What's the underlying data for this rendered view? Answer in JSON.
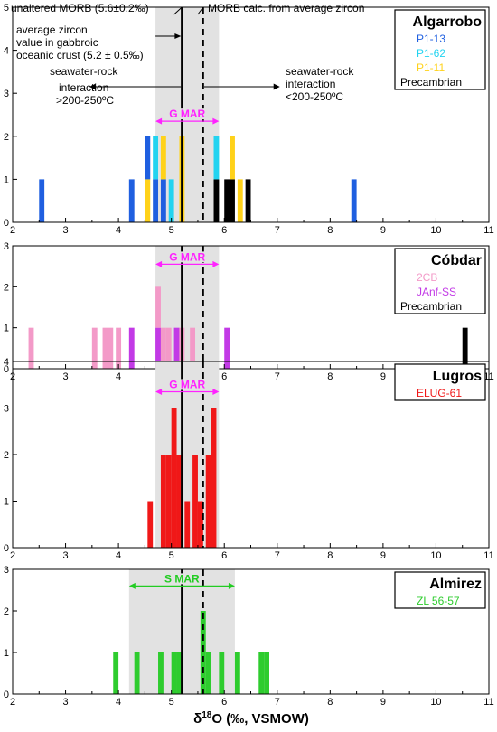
{
  "figure": {
    "x_axis_label_prefix": "δ",
    "x_axis_label_sup": "18",
    "x_axis_label_rest": "O (‰, VSMOW)",
    "annotations": {
      "unaltered_morb": "unaltered MORB (5.6±0.2‰)",
      "morb_calc": "MORB calc. from average zircon",
      "avg_zircon_lines": [
        "average zircon",
        "value in gabbroic",
        "oceanic crust (5.2 ± 0.5‰)"
      ],
      "hot_lines": [
        "seawater-rock",
        "interaction",
        ">200-250ºC"
      ],
      "cold_lines": [
        "seawater-rock",
        "interaction",
        "<200-250ºC"
      ]
    },
    "reference_lines": {
      "solid_x": 5.2,
      "dashed_x": 5.6
    },
    "colors": {
      "P1-13": "#1f5fe0",
      "P1-62": "#22d3f0",
      "P1-11": "#ffd21a",
      "Precambrian": "#000000",
      "2CB": "#f39ac8",
      "JAnf-SS": "#c23ae6",
      "ELUG-61": "#f01818",
      "ZL 56-57": "#2ecc2e",
      "gmar": "#ff22ff",
      "smar": "#22cc22",
      "band": "#e2e2e2"
    }
  },
  "chart_data": [
    {
      "type": "bar",
      "title": "Algarrobo",
      "xlim": [
        2,
        11
      ],
      "ylim": [
        0,
        5
      ],
      "xticks": [
        2,
        3,
        4,
        5,
        6,
        7,
        8,
        9,
        10,
        11
      ],
      "yticks": [
        0,
        1,
        2,
        3,
        4,
        5
      ],
      "band": [
        4.7,
        5.9
      ],
      "range_label": "G MAR",
      "range": [
        4.7,
        5.9
      ],
      "range_y": 2.35,
      "range_color": "gmar",
      "legend": [
        {
          "name": "P1-13",
          "color": "P1-13"
        },
        {
          "name": "P1-62",
          "color": "P1-62"
        },
        {
          "name": "P1-11",
          "color": "P1-11"
        },
        {
          "name": "Precambrian",
          "color": "Precambrian"
        }
      ],
      "bars": [
        {
          "x": 2.55,
          "base": 0,
          "h": 1,
          "series": "P1-13"
        },
        {
          "x": 4.25,
          "base": 0,
          "h": 1,
          "series": "P1-13"
        },
        {
          "x": 4.55,
          "base": 0,
          "h": 1,
          "series": "P1-11"
        },
        {
          "x": 4.55,
          "base": 1,
          "h": 1,
          "series": "P1-13"
        },
        {
          "x": 4.7,
          "base": 0,
          "h": 1,
          "series": "P1-13"
        },
        {
          "x": 4.7,
          "base": 1,
          "h": 1,
          "series": "P1-62"
        },
        {
          "x": 4.85,
          "base": 0,
          "h": 1,
          "series": "P1-13"
        },
        {
          "x": 4.85,
          "base": 1,
          "h": 1,
          "series": "P1-11"
        },
        {
          "x": 5.0,
          "base": 0,
          "h": 1,
          "series": "P1-62"
        },
        {
          "x": 5.2,
          "base": 0,
          "h": 2,
          "series": "P1-11"
        },
        {
          "x": 5.85,
          "base": 0,
          "h": 1,
          "series": "Precambrian"
        },
        {
          "x": 5.85,
          "base": 1,
          "h": 1,
          "series": "P1-62"
        },
        {
          "x": 6.05,
          "base": 0,
          "h": 1,
          "series": "Precambrian"
        },
        {
          "x": 6.15,
          "base": 0,
          "h": 1,
          "series": "Precambrian"
        },
        {
          "x": 6.15,
          "base": 1,
          "h": 1,
          "series": "P1-11"
        },
        {
          "x": 6.3,
          "base": 0,
          "h": 1,
          "series": "P1-11"
        },
        {
          "x": 6.45,
          "base": 0,
          "h": 1,
          "series": "Precambrian"
        },
        {
          "x": 8.45,
          "base": 0,
          "h": 1,
          "series": "P1-13"
        }
      ]
    },
    {
      "type": "bar",
      "title": "Cóbdar",
      "xlim": [
        2,
        11
      ],
      "ylim": [
        0,
        3
      ],
      "xticks": [
        2,
        3,
        4,
        5,
        6,
        7,
        8,
        9,
        10,
        11
      ],
      "yticks": [
        0,
        1,
        2,
        3
      ],
      "band": [
        4.7,
        5.9
      ],
      "range_label": "G MAR",
      "range": [
        4.7,
        5.9
      ],
      "range_y": 2.55,
      "range_color": "gmar",
      "legend": [
        {
          "name": "2CB",
          "color": "2CB"
        },
        {
          "name": "JAnf-SS",
          "color": "JAnf-SS"
        },
        {
          "name": "Precambrian",
          "color": "Precambrian"
        }
      ],
      "bars": [
        {
          "x": 2.35,
          "base": 0,
          "h": 1,
          "series": "2CB"
        },
        {
          "x": 3.55,
          "base": 0,
          "h": 1,
          "series": "2CB"
        },
        {
          "x": 3.75,
          "base": 0,
          "h": 1,
          "series": "2CB"
        },
        {
          "x": 3.85,
          "base": 0,
          "h": 1,
          "series": "2CB"
        },
        {
          "x": 4.0,
          "base": 0,
          "h": 1,
          "series": "2CB"
        },
        {
          "x": 4.25,
          "base": 0,
          "h": 1,
          "series": "JAnf-SS"
        },
        {
          "x": 4.75,
          "base": 0,
          "h": 1,
          "series": "JAnf-SS"
        },
        {
          "x": 4.75,
          "base": 1,
          "h": 1,
          "series": "2CB"
        },
        {
          "x": 4.85,
          "base": 0,
          "h": 1,
          "series": "2CB"
        },
        {
          "x": 4.95,
          "base": 0,
          "h": 1,
          "series": "2CB"
        },
        {
          "x": 5.1,
          "base": 0,
          "h": 1,
          "series": "JAnf-SS"
        },
        {
          "x": 5.2,
          "base": 0,
          "h": 1,
          "series": "2CB"
        },
        {
          "x": 5.4,
          "base": 0,
          "h": 1,
          "series": "2CB"
        },
        {
          "x": 6.05,
          "base": 0,
          "h": 1,
          "series": "JAnf-SS"
        },
        {
          "x": 10.55,
          "base": 0,
          "h": 1,
          "series": "Precambrian"
        }
      ]
    },
    {
      "type": "bar",
      "title": "Lugros",
      "xlim": [
        2,
        11
      ],
      "ylim": [
        0,
        4
      ],
      "xticks": [
        2,
        3,
        4,
        5,
        6,
        7,
        8,
        9,
        10,
        11
      ],
      "yticks": [
        0,
        1,
        2,
        3,
        4
      ],
      "band": [
        4.7,
        5.9
      ],
      "range_label": "G MAR",
      "range": [
        4.7,
        5.9
      ],
      "range_y": 3.35,
      "range_color": "gmar",
      "legend": [
        {
          "name": "ELUG-61",
          "color": "ELUG-61"
        }
      ],
      "bars": [
        {
          "x": 4.6,
          "base": 0,
          "h": 1,
          "series": "ELUG-61"
        },
        {
          "x": 4.85,
          "base": 0,
          "h": 2,
          "series": "ELUG-61"
        },
        {
          "x": 4.95,
          "base": 0,
          "h": 2,
          "series": "ELUG-61"
        },
        {
          "x": 5.05,
          "base": 0,
          "h": 3,
          "series": "ELUG-61"
        },
        {
          "x": 5.15,
          "base": 0,
          "h": 2,
          "series": "ELUG-61"
        },
        {
          "x": 5.3,
          "base": 0,
          "h": 1,
          "series": "ELUG-61"
        },
        {
          "x": 5.45,
          "base": 0,
          "h": 2,
          "series": "ELUG-61"
        },
        {
          "x": 5.55,
          "base": 0,
          "h": 1,
          "series": "ELUG-61"
        },
        {
          "x": 5.7,
          "base": 0,
          "h": 2,
          "series": "ELUG-61"
        },
        {
          "x": 5.8,
          "base": 0,
          "h": 3,
          "series": "ELUG-61"
        }
      ]
    },
    {
      "type": "bar",
      "title": "Almirez",
      "xlim": [
        2,
        11
      ],
      "ylim": [
        0,
        3
      ],
      "xticks": [
        2,
        3,
        4,
        5,
        6,
        7,
        8,
        9,
        10,
        11
      ],
      "yticks": [
        0,
        1,
        2,
        3
      ],
      "band": [
        4.2,
        6.2
      ],
      "range_label": "S MAR",
      "range": [
        4.2,
        6.2
      ],
      "range_y": 2.6,
      "range_color": "smar",
      "legend": [
        {
          "name": "ZL 56-57",
          "color": "ZL 56-57"
        }
      ],
      "bars": [
        {
          "x": 3.95,
          "base": 0,
          "h": 1,
          "series": "ZL 56-57"
        },
        {
          "x": 4.35,
          "base": 0,
          "h": 1,
          "series": "ZL 56-57"
        },
        {
          "x": 4.8,
          "base": 0,
          "h": 1,
          "series": "ZL 56-57"
        },
        {
          "x": 5.05,
          "base": 0,
          "h": 1,
          "series": "ZL 56-57"
        },
        {
          "x": 5.15,
          "base": 0,
          "h": 1,
          "series": "ZL 56-57"
        },
        {
          "x": 5.6,
          "base": 0,
          "h": 2,
          "series": "ZL 56-57"
        },
        {
          "x": 5.7,
          "base": 0,
          "h": 1,
          "series": "ZL 56-57"
        },
        {
          "x": 5.95,
          "base": 0,
          "h": 1,
          "series": "ZL 56-57"
        },
        {
          "x": 6.25,
          "base": 0,
          "h": 1,
          "series": "ZL 56-57"
        },
        {
          "x": 6.7,
          "base": 0,
          "h": 1,
          "series": "ZL 56-57"
        },
        {
          "x": 6.8,
          "base": 0,
          "h": 1,
          "series": "ZL 56-57"
        }
      ]
    }
  ]
}
